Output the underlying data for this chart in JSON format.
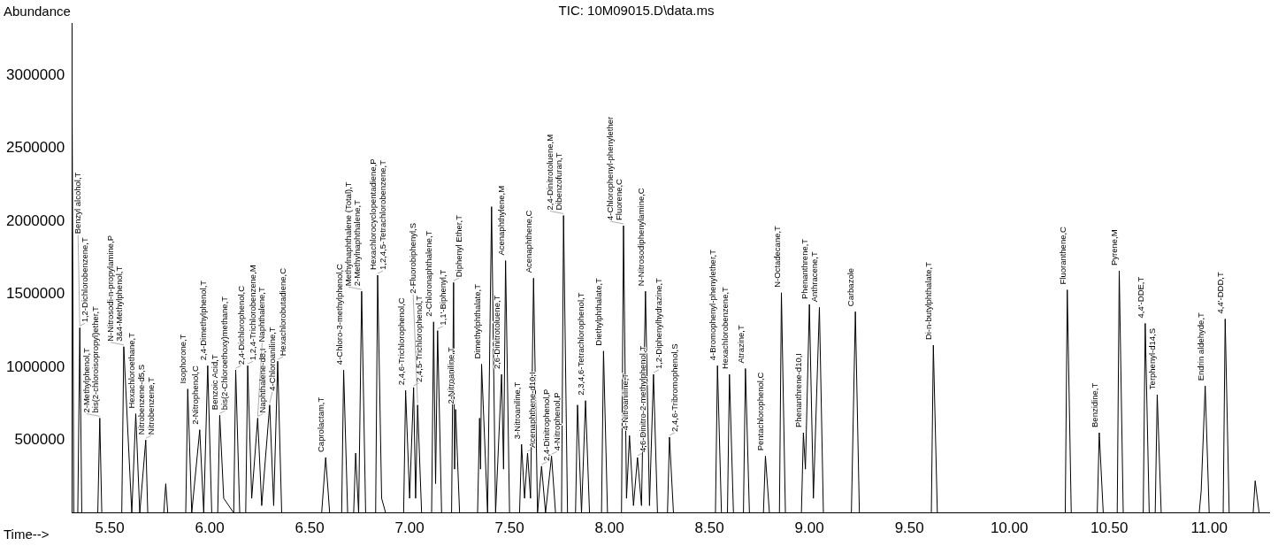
{
  "chart_data": {
    "type": "line",
    "title": "TIC: 10M09015.D\\data.ms",
    "xlabel": "Time-->",
    "ylabel": "Abundance",
    "color": "#000000",
    "marker": "none",
    "grid": false,
    "xlim": [
      5.31,
      11.3
    ],
    "ylim": [
      0,
      3360000
    ],
    "xticks": [
      {
        "value": 5.5,
        "label": "5.50"
      },
      {
        "value": 6,
        "label": "6.00"
      },
      {
        "value": 6.5,
        "label": "6.50"
      },
      {
        "value": 7,
        "label": "7.00"
      },
      {
        "value": 7.5,
        "label": "7.50"
      },
      {
        "value": 8,
        "label": "8.00"
      },
      {
        "value": 8.5,
        "label": "8.50"
      },
      {
        "value": 9,
        "label": "9.00"
      },
      {
        "value": 9.5,
        "label": "9.50"
      },
      {
        "value": 10,
        "label": "10.00"
      },
      {
        "value": 10.5,
        "label": "10.50"
      },
      {
        "value": 11,
        "label": "11.00"
      }
    ],
    "yticks": [
      500000,
      1000000,
      1500000,
      2000000,
      2500000,
      3000000
    ],
    "x": [
      5.31,
      5.32,
      5.34,
      5.35,
      5.36,
      5.44,
      5.45,
      5.46,
      5.56,
      5.57,
      5.61,
      5.63,
      5.65,
      5.68,
      5.69,
      5.77,
      5.78,
      5.79,
      5.88,
      5.89,
      5.91,
      5.95,
      5.97,
      5.99,
      6.01,
      6.04,
      6.05,
      6.07,
      6.12,
      6.13,
      6.15,
      6.18,
      6.19,
      6.21,
      6.24,
      6.26,
      6.3,
      6.32,
      6.34,
      6.36,
      6.56,
      6.58,
      6.6,
      6.66,
      6.67,
      6.69,
      6.72,
      6.73,
      6.745,
      6.76,
      6.78,
      6.83,
      6.84,
      6.86,
      6.88,
      6.97,
      6.98,
      7,
      7.02,
      7.03,
      7.04,
      7.06,
      7.11,
      7.12,
      7.13,
      7.14,
      7.16,
      7.21,
      7.22,
      7.225,
      7.23,
      7.25,
      7.34,
      7.35,
      7.355,
      7.36,
      7.39,
      7.41,
      7.43,
      7.46,
      7.47,
      7.48,
      7.5,
      7.55,
      7.56,
      7.575,
      7.59,
      7.605,
      7.62,
      7.64,
      7.66,
      7.68,
      7.71,
      7.73,
      7.76,
      7.77,
      7.79,
      7.83,
      7.84,
      7.86,
      7.88,
      7.9,
      7.96,
      7.97,
      7.99,
      8.06,
      8.07,
      8.085,
      8.1,
      8.12,
      8.14,
      8.16,
      8.18,
      8.2,
      8.22,
      8.24,
      8.29,
      8.3,
      8.32,
      8.53,
      8.54,
      8.56,
      8.59,
      8.6,
      8.62,
      8.67,
      8.68,
      8.7,
      8.77,
      8.78,
      8.8,
      8.85,
      8.86,
      8.88,
      8.96,
      8.97,
      8.98,
      9,
      9.02,
      9.05,
      9.07,
      9.21,
      9.23,
      9.25,
      9.61,
      9.62,
      9.64,
      10.28,
      10.29,
      10.31,
      10.44,
      10.45,
      10.47,
      10.54,
      10.55,
      10.57,
      10.67,
      10.68,
      10.7,
      10.73,
      10.74,
      10.76,
      10.95,
      10.96,
      10.98,
      11,
      11.07,
      11.08,
      11.1,
      11.22,
      11.23,
      11.25,
      11.3
    ],
    "values": [
      3300000,
      0,
      0,
      1270000,
      0,
      0,
      650000,
      0,
      0,
      1140000,
      0,
      680000,
      0,
      500000,
      0,
      0,
      200000,
      0,
      0,
      850000,
      0,
      570000,
      0,
      1010000,
      0,
      0,
      670000,
      100000,
      0,
      980000,
      0,
      0,
      1010000,
      100000,
      650000,
      50000,
      740000,
      50000,
      1040000,
      0,
      0,
      380000,
      0,
      0,
      980000,
      0,
      0,
      410000,
      0,
      1520000,
      0,
      0,
      1630000,
      100000,
      0,
      0,
      840000,
      100000,
      860000,
      100000,
      740000,
      0,
      0,
      1310000,
      200000,
      1250000,
      0,
      0,
      1580000,
      300000,
      710000,
      0,
      0,
      650000,
      300000,
      1020000,
      0,
      2100000,
      0,
      950000,
      300000,
      1730000,
      0,
      0,
      470000,
      100000,
      410000,
      100000,
      1610000,
      0,
      320000,
      0,
      390000,
      0,
      0,
      2040000,
      0,
      0,
      740000,
      0,
      770000,
      0,
      0,
      1110000,
      0,
      0,
      1970000,
      100000,
      530000,
      50000,
      380000,
      50000,
      1520000,
      50000,
      950000,
      0,
      0,
      520000,
      0,
      0,
      1010000,
      0,
      0,
      950000,
      0,
      0,
      990000,
      0,
      0,
      390000,
      0,
      0,
      1510000,
      0,
      0,
      550000,
      300000,
      1430000,
      100000,
      1410000,
      0,
      0,
      1380000,
      0,
      0,
      1150000,
      0,
      0,
      1530000,
      0,
      0,
      550000,
      0,
      0,
      1660000,
      0,
      0,
      1300000,
      0,
      0,
      810000,
      0,
      0,
      150000,
      870000,
      0,
      0,
      1330000,
      0,
      0,
      220000,
      0,
      0
    ],
    "annotations": [
      {
        "text": "1,2-Dichlorobenzene,T",
        "x": 5.35,
        "y": 1270000
      },
      {
        "text": "Benzyl alcohol,T",
        "x": 5.35,
        "y": 1270000
      },
      {
        "text": "bis(2-chloroisopropyl)ether,T",
        "x": 5.45,
        "y": 650000
      },
      {
        "text": "2-Methylphenol,T",
        "x": 5.45,
        "y": 650000
      },
      {
        "text": "3&4-Methylphenol,T",
        "x": 5.57,
        "y": 1140000
      },
      {
        "text": "N-Nitrosodi-n-propylamine,P",
        "x": 5.57,
        "y": 1140000
      },
      {
        "text": "Hexachloroethane,T",
        "x": 5.63,
        "y": 680000
      },
      {
        "text": "Nitrobenzene-d5,S",
        "x": 5.68,
        "y": 500000
      },
      {
        "text": "Nitrobenzene,T",
        "x": 5.68,
        "y": 500000
      },
      {
        "text": "Isophorone,T",
        "x": 5.89,
        "y": 850000
      },
      {
        "text": "2-Nitrophenol,C",
        "x": 5.95,
        "y": 570000
      },
      {
        "text": "2,4-Dimethylphenol,T",
        "x": 5.99,
        "y": 1010000
      },
      {
        "text": "Benzoic Acid,T",
        "x": 6.05,
        "y": 670000
      },
      {
        "text": "bis(2-Chloroethoxy)methane,T",
        "x": 6.05,
        "y": 670000
      },
      {
        "text": "2,4-Dichlorophenol,C",
        "x": 6.13,
        "y": 980000
      },
      {
        "text": "1,2,4-Trichlorobenzene,M",
        "x": 6.19,
        "y": 1010000
      },
      {
        "text": "Naphthalene-d8,I",
        "x": 6.24,
        "y": 650000
      },
      {
        "text": "Naphthalene,T",
        "x": 6.24,
        "y": 650000
      },
      {
        "text": "4-Chloroaniline,T",
        "x": 6.3,
        "y": 740000
      },
      {
        "text": "Hexachlorobutadiene,C",
        "x": 6.34,
        "y": 1040000
      },
      {
        "text": "Caprolactam,T",
        "x": 6.58,
        "y": 380000
      },
      {
        "text": "4-Chloro-3-methylphenol,C",
        "x": 6.67,
        "y": 980000
      },
      {
        "text": "2-Methylnaphthalene,T",
        "x": 6.76,
        "y": 1520000
      },
      {
        "text": "Methylnaphthalene (Total),T",
        "x": 6.76,
        "y": 1520000
      },
      {
        "text": "Hexachlorocyclopentadiene,P",
        "x": 6.84,
        "y": 1630000
      },
      {
        "text": "1,2,4,5-Tetrachlorobenzene,T",
        "x": 6.84,
        "y": 1630000
      },
      {
        "text": "2,4,6-Trichlorophenol,C",
        "x": 6.98,
        "y": 840000
      },
      {
        "text": "2,4,5-Trichlorophenol,T",
        "x": 7.02,
        "y": 860000
      },
      {
        "text": "2-Fluorobiphenyl,S",
        "x": 7.04,
        "y": 740000
      },
      {
        "text": "2-Chloronaphthalene,T",
        "x": 7.12,
        "y": 1310000
      },
      {
        "text": "1,1'-Biphenyl,T",
        "x": 7.14,
        "y": 1250000
      },
      {
        "text": "Diphenyl Ether,T",
        "x": 7.22,
        "y": 1580000
      },
      {
        "text": "2-Nitroaniline,T",
        "x": 7.23,
        "y": 710000
      },
      {
        "text": "Dimethylphthalate,T",
        "x": 7.36,
        "y": 1020000
      },
      {
        "text": "2,6-Dinitrotoluene,T",
        "x": 7.46,
        "y": 950000
      },
      {
        "text": "Acenaphthylene,M",
        "x": 7.48,
        "y": 1730000
      },
      {
        "text": "3-Nitroaniline,T",
        "x": 7.56,
        "y": 470000
      },
      {
        "text": "Acenaphthene-d10,I",
        "x": 7.59,
        "y": 410000
      },
      {
        "text": "Acenaphthene,C",
        "x": 7.62,
        "y": 1610000
      },
      {
        "text": "2,4-Dinitrophenol,P",
        "x": 7.66,
        "y": 320000
      },
      {
        "text": "4-Nitrophenol,P",
        "x": 7.71,
        "y": 390000
      },
      {
        "text": "Dibenzofuran,T",
        "x": 7.77,
        "y": 2040000
      },
      {
        "text": "2,4-Dinitrotoluene,M",
        "x": 7.77,
        "y": 2040000
      },
      {
        "text": "2,3,4,6-Tetrachlorophenol,T",
        "x": 7.88,
        "y": 770000
      },
      {
        "text": "Diethylphthalate,T",
        "x": 7.97,
        "y": 1110000
      },
      {
        "text": "Fluorene,C",
        "x": 8.07,
        "y": 1970000
      },
      {
        "text": "4-Chlorophenyl-phenylether",
        "x": 8.07,
        "y": 1970000
      },
      {
        "text": "4-Nitroaniline,T",
        "x": 8.1,
        "y": 530000
      },
      {
        "text": "4,6-Dinitro-2-methylphenol,T",
        "x": 8.14,
        "y": 380000
      },
      {
        "text": "N-Nitrosodiphenylamine,C",
        "x": 8.18,
        "y": 1520000
      },
      {
        "text": "1,2-Diphenylhydrazine,T",
        "x": 8.22,
        "y": 950000
      },
      {
        "text": "2,4,6-Tribromophenol,S",
        "x": 8.3,
        "y": 520000
      },
      {
        "text": "4-Bromophenyl-phenylether,T",
        "x": 8.54,
        "y": 1010000
      },
      {
        "text": "Hexachlorobenzene,T",
        "x": 8.6,
        "y": 950000
      },
      {
        "text": "Atrazine,T",
        "x": 8.68,
        "y": 990000
      },
      {
        "text": "Pentachlorophenol,C",
        "x": 8.78,
        "y": 390000
      },
      {
        "text": "N-Octadecane,T",
        "x": 8.86,
        "y": 1510000
      },
      {
        "text": "Phenanthrene-d10,I",
        "x": 8.97,
        "y": 550000
      },
      {
        "text": "Phenanthrene,T",
        "x": 9,
        "y": 1430000
      },
      {
        "text": "Anthracene,T",
        "x": 9.05,
        "y": 1410000
      },
      {
        "text": "Carbazole",
        "x": 9.23,
        "y": 1380000
      },
      {
        "text": "Di-n-butylphthalate,T",
        "x": 9.62,
        "y": 1150000
      },
      {
        "text": "Fluoranthene,C",
        "x": 10.29,
        "y": 1530000
      },
      {
        "text": "Benzidine,T",
        "x": 10.45,
        "y": 550000
      },
      {
        "text": "Pyrene,M",
        "x": 10.55,
        "y": 1660000
      },
      {
        "text": "4,4'-DDE,T",
        "x": 10.68,
        "y": 1300000
      },
      {
        "text": "Terphenyl-d14,S",
        "x": 10.74,
        "y": 810000
      },
      {
        "text": "Endrin aldehyde,T",
        "x": 10.98,
        "y": 870000
      },
      {
        "text": "4,4'-DDD,T",
        "x": 11.08,
        "y": 1330000
      }
    ]
  }
}
